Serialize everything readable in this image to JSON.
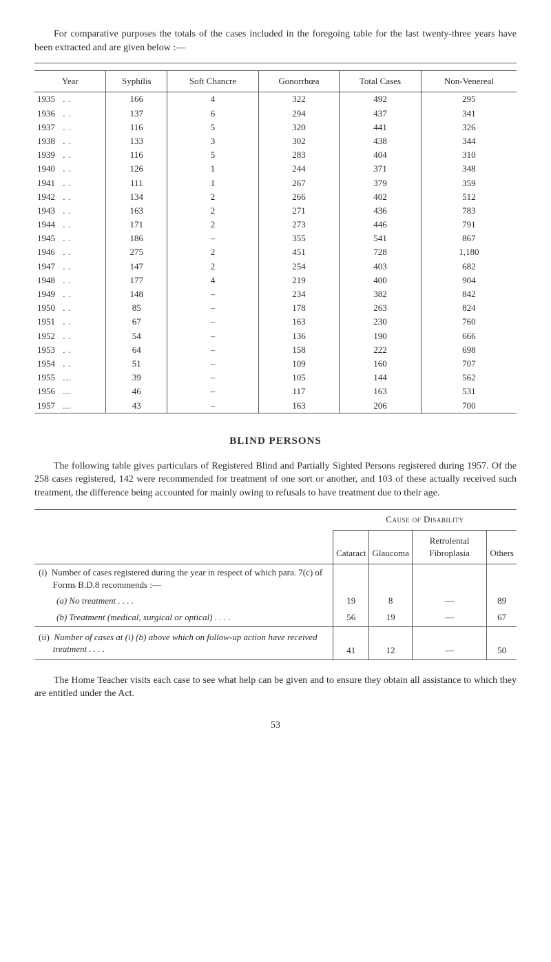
{
  "intro": "For comparative purposes the totals of the cases included in the foregoing table for the last twenty-three years have been extracted and are given below :—",
  "table1": {
    "headers": [
      "Year",
      "Syphilis",
      "Soft Chancre",
      "Gonorrhœa",
      "Total Cases",
      "Non-Venereal"
    ],
    "rows": [
      [
        "1935",
        ". .",
        "166",
        "4",
        "322",
        "492",
        "295"
      ],
      [
        "1936",
        ". .",
        "137",
        "6",
        "294",
        "437",
        "341"
      ],
      [
        "1937",
        ". .",
        "116",
        "5",
        "320",
        "441",
        "326"
      ],
      [
        "1938",
        ". .",
        "133",
        "3",
        "302",
        "438",
        "344"
      ],
      [
        "1939",
        ". .",
        "116",
        "5",
        "283",
        "404",
        "310"
      ],
      [
        "1940",
        ". .",
        "126",
        "1",
        "244",
        "371",
        "348"
      ],
      [
        "1941",
        ". .",
        "111",
        "1",
        "267",
        "379",
        "359"
      ],
      [
        "1942",
        ". .",
        "134",
        "2",
        "266",
        "402",
        "512"
      ],
      [
        "1943",
        ". .",
        "163",
        "2",
        "271",
        "436",
        "783"
      ],
      [
        "1944",
        ". .",
        "171",
        "2",
        "273",
        "446",
        "791"
      ],
      [
        "1945",
        ". .",
        "186",
        "–",
        "355",
        "541",
        "867"
      ],
      [
        "1946",
        ". .",
        "275",
        "2",
        "451",
        "728",
        "1,180"
      ],
      [
        "1947",
        ". .",
        "147",
        "2",
        "254",
        "403",
        "682"
      ],
      [
        "1948",
        ". .",
        "177",
        "4",
        "219",
        "400",
        "904"
      ],
      [
        "1949",
        ". .",
        "148",
        "–",
        "234",
        "382",
        "842"
      ],
      [
        "1950",
        ". .",
        "85",
        "–",
        "178",
        "263",
        "824"
      ],
      [
        "1951",
        ". .",
        "67",
        "–",
        "163",
        "230",
        "760"
      ],
      [
        "1952",
        ". .",
        "54",
        "–",
        "136",
        "190",
        "666"
      ],
      [
        "1953",
        ". .",
        "64",
        "–",
        "158",
        "222",
        "698"
      ],
      [
        "1954",
        ". .",
        "51",
        "–",
        "109",
        "160",
        "707"
      ],
      [
        "1955",
        "...",
        "39",
        "–",
        "105",
        "144",
        "562"
      ],
      [
        "1956",
        "...",
        "46",
        "–",
        "117",
        "163",
        "531"
      ],
      [
        "1957",
        "...",
        "43",
        "–",
        "163",
        "206",
        "700"
      ]
    ]
  },
  "section_heading": "BLIND PERSONS",
  "para2": "The following table gives particulars of Registered Blind and Partially Sighted Persons registered during 1957. Of the 258 cases registered, 142 were recommended for treatment of one sort or another, and 103 of these actually received such treatment, the difference being accounted for mainly owing to refusals to have treatment due to their age.",
  "table2": {
    "group_header": "Cause of Disability",
    "subheaders": [
      "Cataract",
      "Glaucoma",
      "Retrolental Fibroplasia",
      "Others"
    ],
    "rows": [
      {
        "label_i": "(i)",
        "label_main": "Number of cases registered during the year in respect of which para. 7(c) of Forms B.D.8 recommends :—",
        "sub_a_label": "(a)  No treatment     . .     . .",
        "sub_a_vals": [
          "19",
          "8",
          "—",
          "89"
        ],
        "sub_b_label": "(b)  Treatment (medical, surgical or optical)  . .     . .",
        "sub_b_vals": [
          "56",
          "19",
          "—",
          "67"
        ]
      },
      {
        "label_ii": "(ii)",
        "label_main": "Number of cases at (i) (b) above which on follow-up action have received treatment     . .     . .",
        "vals": [
          "41",
          "12",
          "—",
          "50"
        ]
      }
    ]
  },
  "para3": "The Home Teacher visits each case to see what help can be given and to ensure they obtain all assistance to which they are entitled under the Act.",
  "page_number": "53"
}
